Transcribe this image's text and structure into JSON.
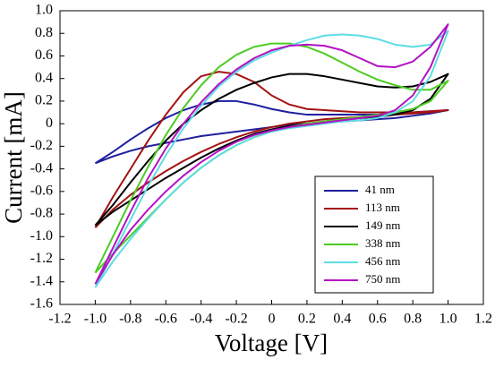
{
  "chart_data": {
    "type": "line",
    "x_label": "Voltage [V]",
    "y_label": "Current [mA]",
    "x": [
      -1.0,
      -0.9,
      -0.8,
      -0.7,
      -0.6,
      -0.5,
      -0.4,
      -0.3,
      -0.2,
      -0.1,
      0,
      0.1,
      0.2,
      0.3,
      0.4,
      0.5,
      0.6,
      0.7,
      0.8,
      0.9,
      1.0,
      0.9,
      0.8,
      0.7,
      0.6,
      0.5,
      0.4,
      0.3,
      0.2,
      0.1,
      0,
      -0.1,
      -0.2,
      -0.3,
      -0.4,
      -0.5,
      -0.6,
      -0.7,
      -0.8,
      -0.9,
      -1.0
    ],
    "series": [
      {
        "name": "41 nm",
        "color": "#1f1f9e",
        "values": [
          -0.35,
          -0.25,
          -0.14,
          -0.04,
          0.05,
          0.12,
          0.17,
          0.2,
          0.2,
          0.17,
          0.13,
          0.1,
          0.08,
          0.08,
          0.08,
          0.08,
          0.08,
          0.09,
          0.1,
          0.11,
          0.12,
          0.09,
          0.07,
          0.05,
          0.04,
          0.03,
          0.02,
          0.01,
          0,
          -0.01,
          -0.03,
          -0.05,
          -0.07,
          -0.09,
          -0.11,
          -0.14,
          -0.17,
          -0.2,
          -0.24,
          -0.29,
          -0.35
        ]
      },
      {
        "name": "113 nm",
        "color": "#a31212",
        "values": [
          -0.92,
          -0.65,
          -0.4,
          -0.15,
          0.08,
          0.28,
          0.42,
          0.46,
          0.44,
          0.37,
          0.25,
          0.17,
          0.13,
          0.12,
          0.11,
          0.1,
          0.1,
          0.1,
          0.1,
          0.11,
          0.12,
          0.1,
          0.09,
          0.08,
          0.07,
          0.06,
          0.05,
          0.04,
          0.02,
          0,
          -0.03,
          -0.07,
          -0.12,
          -0.18,
          -0.25,
          -0.33,
          -0.42,
          -0.52,
          -0.63,
          -0.76,
          -0.92
        ]
      },
      {
        "name": "149 nm",
        "color": "#000000",
        "values": [
          -0.9,
          -0.72,
          -0.52,
          -0.33,
          -0.15,
          0,
          0.12,
          0.22,
          0.3,
          0.36,
          0.41,
          0.44,
          0.44,
          0.42,
          0.39,
          0.36,
          0.33,
          0.32,
          0.33,
          0.37,
          0.44,
          0.22,
          0.12,
          0.08,
          0.06,
          0.05,
          0.04,
          0.02,
          0,
          -0.02,
          -0.05,
          -0.09,
          -0.15,
          -0.22,
          -0.3,
          -0.39,
          -0.48,
          -0.58,
          -0.68,
          -0.78,
          -0.9
        ]
      },
      {
        "name": "338 nm",
        "color": "#4ccc22",
        "values": [
          -1.32,
          -1.0,
          -0.68,
          -0.38,
          -0.1,
          0.14,
          0.34,
          0.5,
          0.61,
          0.68,
          0.71,
          0.71,
          0.68,
          0.62,
          0.54,
          0.46,
          0.39,
          0.34,
          0.3,
          0.3,
          0.38,
          0.2,
          0.13,
          0.1,
          0.08,
          0.06,
          0.04,
          0.02,
          0,
          -0.03,
          -0.07,
          -0.12,
          -0.19,
          -0.28,
          -0.39,
          -0.52,
          -0.67,
          -0.83,
          -0.99,
          -1.15,
          -1.32
        ]
      },
      {
        "name": "456 nm",
        "color": "#5edde2",
        "values": [
          -1.45,
          -1.15,
          -0.85,
          -0.55,
          -0.28,
          -0.04,
          0.16,
          0.33,
          0.46,
          0.56,
          0.63,
          0.69,
          0.74,
          0.78,
          0.79,
          0.78,
          0.75,
          0.7,
          0.68,
          0.7,
          0.82,
          0.42,
          0.2,
          0.1,
          0.05,
          0.03,
          0.02,
          0,
          -0.02,
          -0.04,
          -0.07,
          -0.12,
          -0.19,
          -0.28,
          -0.39,
          -0.52,
          -0.67,
          -0.84,
          -1.02,
          -1.22,
          -1.45
        ]
      },
      {
        "name": "750 nm",
        "color": "#b312c4",
        "values": [
          -1.42,
          -1.1,
          -0.78,
          -0.48,
          -0.22,
          0,
          0.19,
          0.35,
          0.48,
          0.58,
          0.65,
          0.69,
          0.7,
          0.69,
          0.65,
          0.58,
          0.51,
          0.5,
          0.55,
          0.68,
          0.88,
          0.5,
          0.25,
          0.12,
          0.07,
          0.05,
          0.03,
          0.01,
          -0.01,
          -0.03,
          -0.06,
          -0.1,
          -0.16,
          -0.24,
          -0.34,
          -0.46,
          -0.6,
          -0.76,
          -0.94,
          -1.16,
          -1.42
        ]
      }
    ],
    "xlim": [
      -1.2,
      1.2
    ],
    "xticks": [
      -1.2,
      {
        "value": -1,
        "label": "-1.0"
      },
      -0.8,
      -0.6,
      -0.4,
      -0.2,
      0,
      0.2,
      0.4,
      0.6,
      0.8,
      {
        "value": 1,
        "label": "1.0"
      },
      1.2
    ],
    "ylim": [
      -1.6,
      1.0
    ],
    "yticks": [
      {
        "value": 1,
        "label": "1.0"
      },
      0.8,
      0.6,
      0.4,
      0.2,
      0,
      -0.2,
      -0.4,
      -0.6,
      -0.8,
      {
        "value": -1,
        "label": "-1.0"
      },
      -1.2,
      -1.4,
      -1.6
    ],
    "grid": false,
    "legend": "lower right"
  }
}
